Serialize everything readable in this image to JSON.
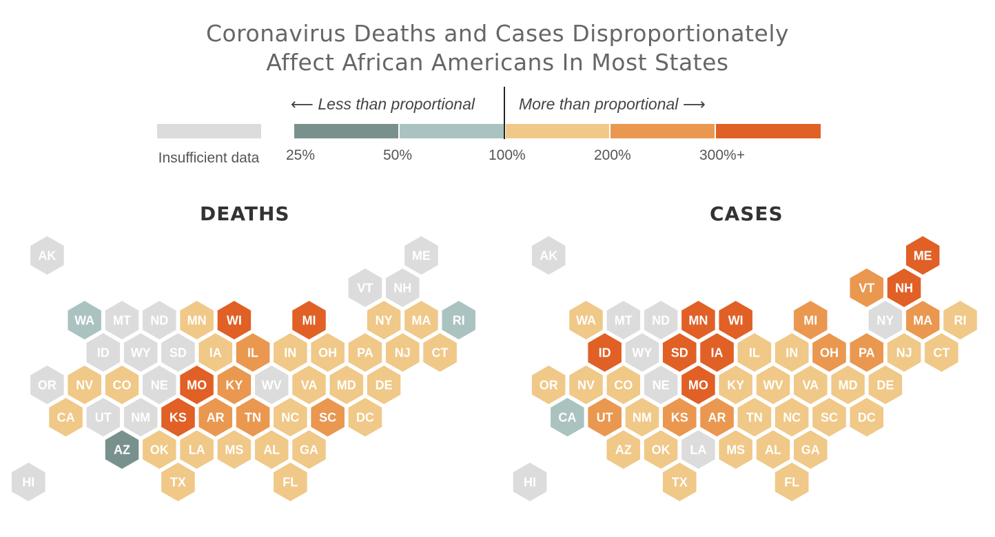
{
  "title": {
    "line1": "Coronavirus Deaths and Cases Disproportionately",
    "line2": "Affect African Americans In Most States"
  },
  "legend": {
    "less_label": "⟵ Less than proportional",
    "more_label": "More than proportional ⟶",
    "insufficient_label": "Insufficient data",
    "ticks": [
      "25%",
      "50%",
      "100%",
      "200%",
      "300%+"
    ],
    "colors": {
      "insufficient": "#dcdcdc",
      "25-50": "#79918d",
      "50-100": "#aac3c1",
      "100-200": "#f0c887",
      "200-300": "#ea9750",
      "300+": "#e06026"
    }
  },
  "maps": {
    "deaths": {
      "title": "DEATHS",
      "states": {
        "AK": "insufficient",
        "ME": "insufficient",
        "VT": "insufficient",
        "NH": "insufficient",
        "WA": "50-100",
        "MT": "insufficient",
        "ND": "insufficient",
        "MN": "100-200",
        "WI": "300+",
        "MI": "300+",
        "NY": "100-200",
        "MA": "100-200",
        "RI": "50-100",
        "ID": "insufficient",
        "WY": "insufficient",
        "SD": "insufficient",
        "IA": "100-200",
        "IL": "200-300",
        "IN": "100-200",
        "OH": "100-200",
        "PA": "100-200",
        "NJ": "100-200",
        "CT": "100-200",
        "OR": "insufficient",
        "NV": "100-200",
        "CO": "100-200",
        "NE": "insufficient",
        "MO": "300+",
        "KY": "200-300",
        "WV": "insufficient",
        "VA": "100-200",
        "MD": "100-200",
        "DE": "100-200",
        "CA": "100-200",
        "UT": "insufficient",
        "NM": "insufficient",
        "KS": "300+",
        "AR": "200-300",
        "TN": "200-300",
        "NC": "100-200",
        "SC": "200-300",
        "DC": "100-200",
        "AZ": "25-50",
        "OK": "100-200",
        "LA": "100-200",
        "MS": "100-200",
        "AL": "100-200",
        "GA": "100-200",
        "HI": "insufficient",
        "TX": "100-200",
        "FL": "100-200"
      }
    },
    "cases": {
      "title": "CASES",
      "states": {
        "AK": "insufficient",
        "ME": "300+",
        "VT": "200-300",
        "NH": "300+",
        "WA": "100-200",
        "MT": "insufficient",
        "ND": "insufficient",
        "MN": "300+",
        "WI": "300+",
        "MI": "200-300",
        "NY": "insufficient",
        "MA": "200-300",
        "RI": "100-200",
        "ID": "300+",
        "WY": "insufficient",
        "SD": "300+",
        "IA": "300+",
        "IL": "100-200",
        "IN": "100-200",
        "OH": "200-300",
        "PA": "200-300",
        "NJ": "100-200",
        "CT": "100-200",
        "OR": "100-200",
        "NV": "100-200",
        "CO": "100-200",
        "NE": "insufficient",
        "MO": "300+",
        "KY": "100-200",
        "WV": "100-200",
        "VA": "100-200",
        "MD": "100-200",
        "DE": "100-200",
        "CA": "50-100",
        "UT": "200-300",
        "NM": "100-200",
        "KS": "200-300",
        "AR": "200-300",
        "TN": "100-200",
        "NC": "100-200",
        "SC": "100-200",
        "DC": "100-200",
        "AZ": "100-200",
        "OK": "100-200",
        "LA": "insufficient",
        "MS": "100-200",
        "AL": "100-200",
        "GA": "100-200",
        "HI": "insufficient",
        "TX": "100-200",
        "FL": "100-200"
      }
    }
  }
}
